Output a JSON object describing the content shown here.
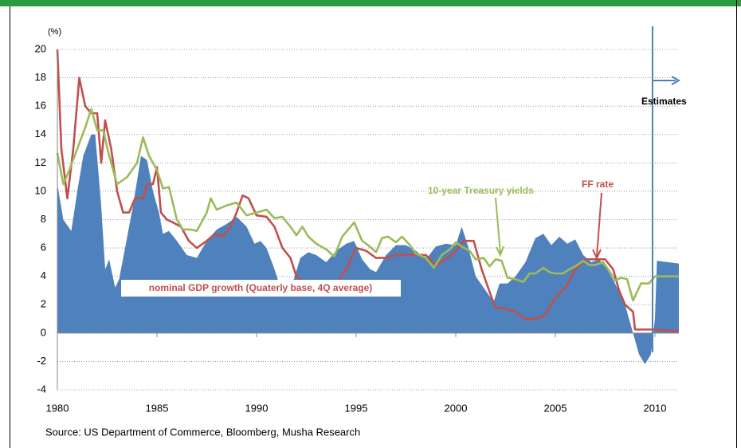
{
  "chart_data": {
    "type": "line",
    "y_unit_label": "(%)",
    "source": "Source:  US Department of Commerce, Bloomberg, Musha Research",
    "annotations": [
      "Estimates"
    ],
    "xlim": [
      1980,
      2011.2
    ],
    "ylim": [
      -4,
      20
    ],
    "xticks": [
      1980,
      1985,
      1990,
      1995,
      2000,
      2005,
      2010
    ],
    "yticks": [
      -4,
      -2,
      0,
      2,
      4,
      6,
      8,
      10,
      12,
      14,
      16,
      18,
      20
    ],
    "grid": true,
    "series": [
      {
        "name": "nominal GDP growth (Quaterly base, 4Q average)",
        "type": "area",
        "color": "#4f81bd",
        "x": [
          1980,
          1980.3,
          1980.7,
          1981,
          1981.3,
          1981.7,
          1981.9,
          1982.2,
          1982.4,
          1982.6,
          1982.9,
          1983.1,
          1983.4,
          1983.8,
          1984.2,
          1984.5,
          1984.8,
          1985.1,
          1985.3,
          1985.6,
          1986,
          1986.5,
          1987,
          1987.5,
          1988,
          1988.5,
          1989,
          1989.5,
          1989.9,
          1990.2,
          1990.5,
          1990.9,
          1991.2,
          1991.5,
          1991.8,
          1992.2,
          1992.6,
          1993,
          1993.5,
          1994,
          1994.5,
          1994.9,
          1995.3,
          1995.7,
          1996,
          1996.5,
          1997,
          1997.5,
          1998,
          1998.5,
          1999,
          1999.5,
          2000,
          2000.3,
          2000.6,
          2001,
          2001.5,
          2001.9,
          2002.2,
          2002.6,
          2003,
          2003.5,
          2004,
          2004.4,
          2004.8,
          2005.2,
          2005.6,
          2006,
          2006.4,
          2006.8,
          2007.2,
          2007.6,
          2008,
          2008.5,
          2008.9,
          2009.2,
          2009.5,
          2009.8,
          2010,
          2010.1,
          2011.2
        ],
        "values": [
          10.5,
          8,
          7.2,
          10,
          12.5,
          14,
          14,
          9,
          4.5,
          5.2,
          3.2,
          3.8,
          6,
          9,
          12.5,
          12.2,
          10,
          8.5,
          7,
          7.2,
          6.5,
          5.5,
          5.3,
          6.5,
          7.3,
          7.7,
          8.2,
          7.5,
          6.3,
          6.5,
          6,
          4.5,
          3.2,
          3,
          3.5,
          5.3,
          5.7,
          5.5,
          5,
          5.8,
          6.3,
          6.5,
          5.2,
          4.5,
          4.3,
          5.5,
          6.2,
          6.2,
          5.8,
          5.2,
          6.1,
          6.3,
          6.2,
          7.5,
          6.2,
          4,
          3,
          2.2,
          3.5,
          3.5,
          4,
          5,
          6.7,
          7,
          6.2,
          6.8,
          6.3,
          6.6,
          5.5,
          5,
          5.2,
          4.5,
          3.5,
          2,
          0,
          -1.5,
          -2.2,
          -1.5,
          1,
          5.1,
          4.9
        ]
      },
      {
        "name": "FF rate",
        "type": "line",
        "color": "#c0504d",
        "x": [
          1980,
          1980.2,
          1980.5,
          1980.8,
          1981.1,
          1981.4,
          1981.7,
          1982,
          1982.2,
          1982.4,
          1982.7,
          1983,
          1983.3,
          1983.6,
          1983.9,
          1984.3,
          1984.5,
          1984.8,
          1985,
          1985.2,
          1985.5,
          1985.8,
          1986.2,
          1986.6,
          1987,
          1987.5,
          1987.9,
          1988.3,
          1988.7,
          1989,
          1989.3,
          1989.6,
          1990,
          1990.5,
          1990.9,
          1991.3,
          1991.7,
          1992,
          1992.5,
          1993,
          1993.5,
          1994,
          1994.5,
          1995,
          1995.5,
          1996,
          1996.5,
          1997,
          1997.5,
          1998,
          1998.5,
          1999,
          1999.5,
          2000,
          2000.4,
          2000.9,
          2001.3,
          2001.8,
          2002,
          2002.5,
          2003,
          2003.5,
          2004,
          2004.5,
          2005,
          2005.5,
          2006,
          2006.5,
          2007,
          2007.5,
          2007.9,
          2008.2,
          2008.5,
          2008.9,
          2009,
          2010,
          2011.2
        ],
        "values": [
          20,
          13,
          9.5,
          13,
          18,
          16,
          15.5,
          15.5,
          12,
          15,
          13,
          10,
          8.5,
          8.5,
          9.5,
          9.5,
          10.5,
          10.5,
          11.7,
          8.5,
          8,
          7.8,
          7.5,
          6.5,
          6,
          6.5,
          7,
          6.8,
          7.5,
          8.5,
          9.7,
          9.5,
          8.3,
          8.2,
          7.5,
          6,
          5.3,
          4,
          3.5,
          3,
          3,
          3.5,
          4.5,
          6,
          5.8,
          5.3,
          5.3,
          5.5,
          5.5,
          5.5,
          5.5,
          4.8,
          5.2,
          5.8,
          6.5,
          6.5,
          4.5,
          2.5,
          1.8,
          1.7,
          1.5,
          1,
          1,
          1.3,
          2.5,
          3.2,
          4.5,
          5.2,
          5.2,
          5.2,
          4.5,
          3,
          2,
          1.5,
          0.25,
          0.25,
          0.1
        ]
      },
      {
        "name": "10-year Treasury yields",
        "type": "line",
        "color": "#9bbb59",
        "x": [
          1980,
          1980.3,
          1980.6,
          1981,
          1981.4,
          1981.7,
          1982,
          1982.3,
          1982.6,
          1983,
          1983.5,
          1984,
          1984.3,
          1984.6,
          1985,
          1985.3,
          1985.6,
          1986,
          1986.3,
          1986.7,
          1987,
          1987.5,
          1987.7,
          1988,
          1988.5,
          1989,
          1989.5,
          1990,
          1990.5,
          1990.9,
          1991.3,
          1991.7,
          1992,
          1992.3,
          1992.6,
          1993,
          1993.5,
          1993.9,
          1994.3,
          1994.6,
          1994.9,
          1995.3,
          1995.6,
          1996,
          1996.3,
          1996.6,
          1997,
          1997.3,
          1997.7,
          1998,
          1998.5,
          1998.9,
          1999.3,
          1999.7,
          2000,
          2000.3,
          2000.7,
          2001,
          2001.4,
          2001.7,
          2002,
          2002.3,
          2002.6,
          2003,
          2003.4,
          2003.7,
          2004,
          2004.4,
          2004.7,
          2005,
          2005.4,
          2005.7,
          2006,
          2006.4,
          2006.7,
          2007,
          2007.4,
          2007.7,
          2008,
          2008.3,
          2008.6,
          2008.9,
          2009.3,
          2009.7,
          2010,
          2011.2
        ],
        "values": [
          12.7,
          10.5,
          11.5,
          13,
          14.5,
          15.8,
          14.3,
          14.3,
          12.5,
          10.5,
          11,
          12,
          13.8,
          12.5,
          11.5,
          10.2,
          10.3,
          8,
          7.3,
          7.3,
          7.2,
          8.5,
          9.5,
          8.7,
          9,
          9.2,
          8.3,
          8.5,
          8.7,
          8.1,
          8.2,
          7.5,
          6.9,
          7.5,
          6.8,
          6.3,
          5.9,
          5.4,
          6.8,
          7.3,
          7.8,
          6.5,
          6.2,
          5.7,
          6.7,
          6.8,
          6.4,
          6.8,
          6.2,
          5.6,
          5.3,
          4.6,
          5.5,
          5.9,
          6.4,
          6.1,
          5.8,
          5.2,
          5.3,
          4.7,
          5.2,
          5.1,
          3.9,
          3.8,
          3.6,
          4.2,
          4.2,
          4.6,
          4.3,
          4.2,
          4.2,
          4.5,
          4.7,
          5.1,
          4.8,
          4.8,
          5,
          4.4,
          3.7,
          3.9,
          3.8,
          2.3,
          3.5,
          3.5,
          4,
          4
        ]
      }
    ]
  }
}
